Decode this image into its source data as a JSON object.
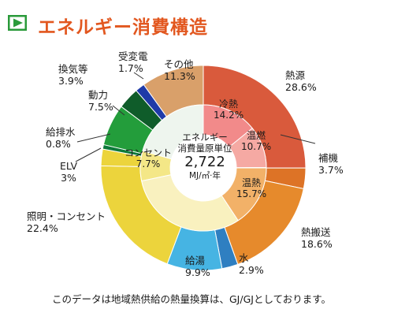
{
  "header": {
    "title": "エネルギー消費構造"
  },
  "chart_data": {
    "type": "donut",
    "outer_ring": [
      {
        "label": "熱源",
        "value": 28.6,
        "value_text": "28.6%",
        "color": "#d95a3c"
      },
      {
        "label": "補機",
        "value": 3.7,
        "value_text": "3.7%",
        "color": "#dd7326"
      },
      {
        "label": "熱搬送",
        "value": 18.6,
        "value_text": "18.6%",
        "color": "#e68a2c"
      },
      {
        "label": "水",
        "value": 2.9,
        "value_text": "2.9%",
        "color": "#2f7fc1"
      },
      {
        "label": "給湯",
        "value": 9.9,
        "value_text": "9.9%",
        "color": "#46b4e3"
      },
      {
        "label": "照明・コンセント",
        "value": 22.4,
        "value_text": "22.4%",
        "color": "#ecd43c"
      },
      {
        "label": "ELV",
        "value": 3,
        "value_text": "3%",
        "color": "#ecd43c"
      },
      {
        "label": "給排水",
        "value": 0.8,
        "value_text": "0.8%",
        "color": "#0d7a3a"
      },
      {
        "label": "動力",
        "value": 7.5,
        "value_text": "7.5%",
        "color": "#239d3b"
      },
      {
        "label": "換気等",
        "value": 3.9,
        "value_text": "3.9%",
        "color": "#0f5c2a"
      },
      {
        "label": "受変電",
        "value": 1.7,
        "value_text": "1.7%",
        "color": "#1f3aa8"
      },
      {
        "label": "その他",
        "value": 11.3,
        "value_text": "11.3%",
        "color": "#d9a06a"
      }
    ],
    "inner_ring": [
      {
        "label": "冷熱",
        "value": 14.2,
        "value_text": "14.2%",
        "color": "#f28a8a"
      },
      {
        "label": "温燃",
        "value": 10.7,
        "value_text": "10.7%",
        "color": "#f5a9a3"
      },
      {
        "label": "温熱",
        "value": 15.7,
        "value_text": "15.7%",
        "color": "#f2b168"
      },
      {
        "label": "コンセント",
        "value": 7.7,
        "value_text": "7.7%",
        "color": "#f4e787"
      }
    ],
    "center": {
      "line1": "エネルギー",
      "line2": "消費量原単位",
      "value": "2,722",
      "unit": "MJ/㎡·年"
    }
  },
  "footnote": "このデータは地域熱供給の熱量換算は、GJ/GJとしております。",
  "colors": {
    "title": "#e2571f",
    "marker_green": "#2a9a3a"
  }
}
